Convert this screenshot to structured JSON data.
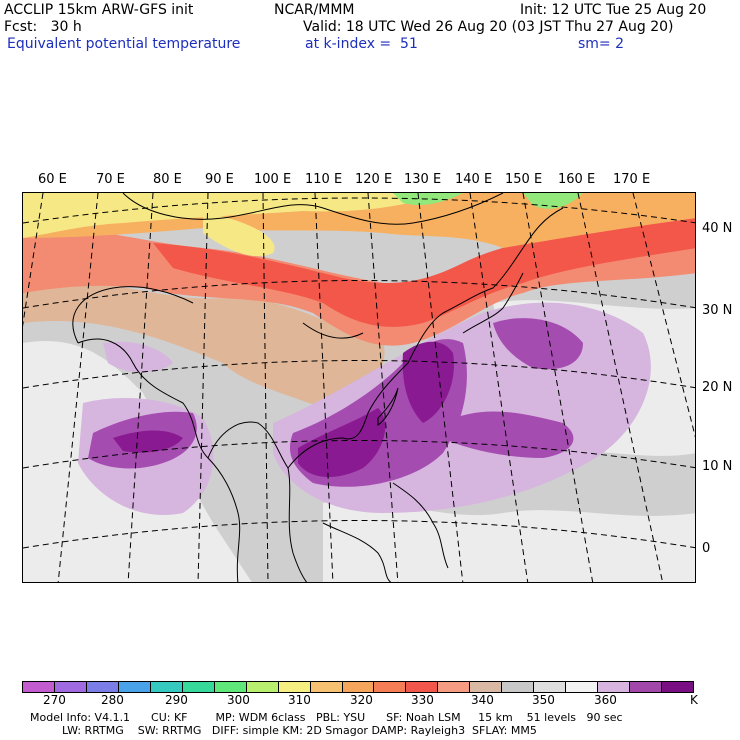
{
  "header": {
    "line1_left": "ACCLIP 15km ARW-GFS init",
    "line1_mid": "NCAR/MMM",
    "line1_right": "Init: 12 UTC Tue 25 Aug 20",
    "line2_left": "Fcst:   30 h",
    "line2_right": "Valid: 18 UTC Wed 26 Aug 20 (03 JST Thu 27 Aug 20)",
    "line3_left": "Equivalent potential temperature",
    "line3_mid": "at k-index =  51",
    "line3_right": "sm= 2"
  },
  "map": {
    "lon_labels": [
      "60 E",
      "70 E",
      "80 E",
      "90 E",
      "100 E",
      "110 E",
      "120 E",
      "130 E",
      "140 E",
      "150 E",
      "160 E",
      "170 E"
    ],
    "lat_labels": [
      "40 N",
      "30 N",
      "20 N",
      "10 N",
      "0"
    ],
    "field_colors": {
      "violet_dark": "#8a1a91",
      "violet_mid": "#a54cb0",
      "lilac": "#d6b6df",
      "pale_gray": "#ebebeb",
      "gray": "#c8c8c8",
      "tan": "#e0b89a",
      "salmon": "#f4846a",
      "red": "#f25a4d",
      "orange": "#f6b060",
      "yellow": "#f7ea82",
      "green": "#8ee878"
    }
  },
  "colorbar": {
    "colors": [
      "#c25ccf",
      "#a06be0",
      "#7c7ee8",
      "#4aa3e8",
      "#35c9c0",
      "#36d99a",
      "#5fe77a",
      "#b8ef6e",
      "#f5ee80",
      "#f6c272",
      "#f6a65c",
      "#f57e56",
      "#f1574a",
      "#f59c82",
      "#d9b9a4",
      "#c8c8c8",
      "#dedede",
      "#f2f2f2",
      "#d8b4e0",
      "#a148aa",
      "#7a0f84"
    ],
    "labels": [
      "270",
      "280",
      "290",
      "300",
      "310",
      "320",
      "330",
      "340",
      "350",
      "360"
    ],
    "unit": "K"
  },
  "model_info": {
    "line1": "Model Info: V4.1.1      CU: KF        MP: WDM 6class   PBL: YSU      SF: Noah LSM     15 km    51 levels   90 sec",
    "line2": "LW: RRTMG    SW: RRTMG   DIFF: simple KM: 2D Smagor DAMP: Rayleigh3  SFLAY: MM5"
  }
}
